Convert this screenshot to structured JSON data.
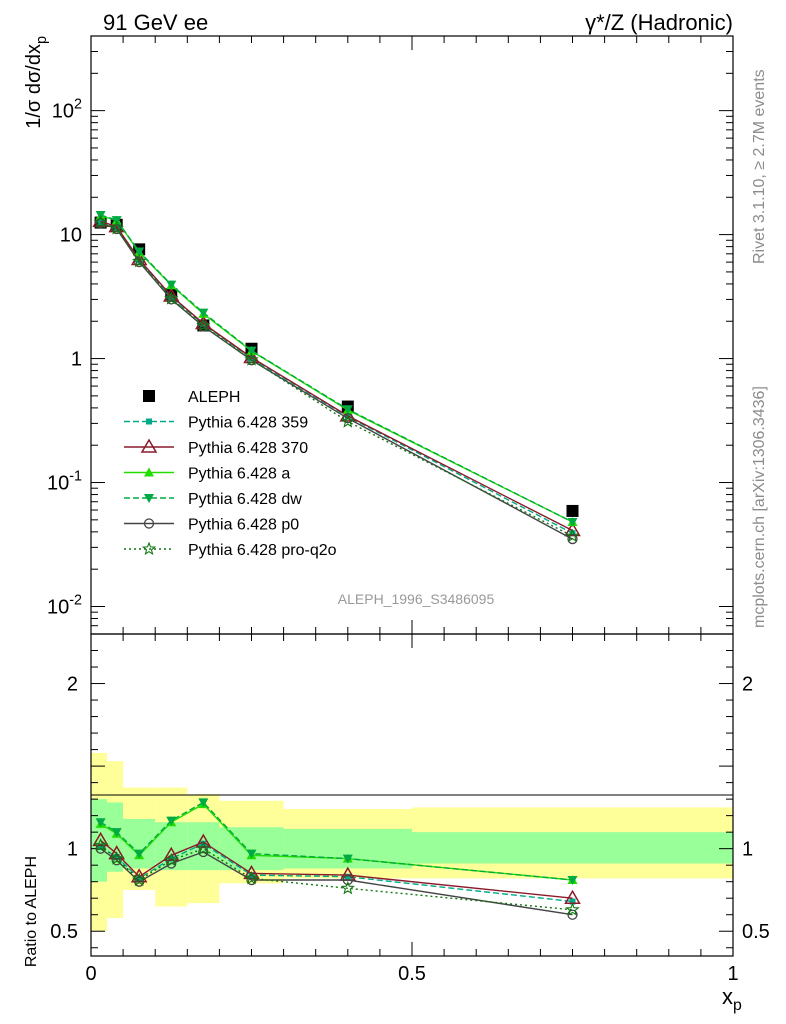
{
  "header": {
    "left": "91 GeV ee",
    "right": "γ*/Z (Hadronic)"
  },
  "side": {
    "top": "Rivet 3.1.10, ≥ 2.7M events",
    "bottom": "mcplots.cern.ch [arXiv:1306.3436]"
  },
  "watermark": "ALEPH_1996_S3486095",
  "chart_data": [
    {
      "type": "line",
      "panel": "main",
      "ylabel": "1/σ dσ/dx_p",
      "yscale": "log",
      "ylim": [
        0.006,
        400
      ],
      "xlim": [
        0,
        1
      ],
      "yticks": [
        "10^-2",
        "10^-1",
        "1",
        "10",
        "10^2"
      ],
      "legend_position": "middle-left",
      "x": [
        0.015,
        0.04,
        0.075,
        0.125,
        0.175,
        0.25,
        0.4,
        0.75
      ],
      "series": [
        {
          "name": "ALEPH",
          "style": "data",
          "color": "#000000",
          "marker": "square",
          "values": [
            12.5,
            12.0,
            7.6,
            3.3,
            1.85,
            1.2,
            0.41,
            0.059
          ]
        },
        {
          "name": "Pythia 6.428 359",
          "color": "#00aa88",
          "dash": "6,3",
          "marker": "smallsquare",
          "values": [
            12.6,
            11.4,
            6.2,
            3.1,
            1.9,
            1.0,
            0.34,
            0.039
          ]
        },
        {
          "name": "Pythia 6.428 370",
          "color": "#8b1a2b",
          "dash": "",
          "marker": "triangle-open",
          "values": [
            12.8,
            11.6,
            6.3,
            3.2,
            1.92,
            1.02,
            0.345,
            0.041
          ]
        },
        {
          "name": "Pythia 6.428 a",
          "color": "#22dd00",
          "dash": "",
          "marker": "triangle",
          "values": [
            14.2,
            13.0,
            7.2,
            3.9,
            2.3,
            1.15,
            0.385,
            0.048
          ]
        },
        {
          "name": "Pythia 6.428 dw",
          "color": "#00aa44",
          "dash": "6,3",
          "marker": "triangle-down",
          "values": [
            14.4,
            13.1,
            7.3,
            3.95,
            2.35,
            1.16,
            0.39,
            0.048
          ]
        },
        {
          "name": "Pythia 6.428 p0",
          "color": "#444444",
          "dash": "",
          "marker": "circle-open",
          "values": [
            12.4,
            11.1,
            6.0,
            3.0,
            1.82,
            0.97,
            0.33,
            0.035
          ]
        },
        {
          "name": "Pythia 6.428 pro-q2o",
          "color": "#117711",
          "dash": "2,3",
          "marker": "star",
          "values": [
            12.6,
            11.2,
            6.1,
            3.05,
            1.85,
            0.98,
            0.31,
            0.037
          ]
        }
      ]
    },
    {
      "type": "line",
      "panel": "ratio",
      "ylabel": "Ratio to ALEPH",
      "xlabel": "x_p",
      "ylim": [
        0.35,
        2.3
      ],
      "yticks": [
        "0.5",
        "1",
        "2"
      ],
      "xlim": [
        0,
        1
      ],
      "xticks": [
        "0",
        "0.5",
        "1"
      ],
      "x": [
        0.015,
        0.04,
        0.075,
        0.125,
        0.175,
        0.25,
        0.4,
        0.75
      ],
      "bands": {
        "edges": [
          0.0,
          0.025,
          0.05,
          0.1,
          0.15,
          0.2,
          0.3,
          0.5,
          1.0
        ],
        "inner": [
          [
            0.8,
            1.3
          ],
          [
            0.86,
            1.28
          ],
          [
            0.88,
            1.18
          ],
          [
            0.87,
            1.16
          ],
          [
            0.87,
            1.16
          ],
          [
            0.87,
            1.13
          ],
          [
            0.88,
            1.12
          ],
          [
            0.91,
            1.1
          ]
        ],
        "outer": [
          [
            0.5,
            1.58
          ],
          [
            0.58,
            1.53
          ],
          [
            0.75,
            1.37
          ],
          [
            0.65,
            1.37
          ],
          [
            0.67,
            1.33
          ],
          [
            0.79,
            1.29
          ],
          [
            0.82,
            1.24
          ],
          [
            0.82,
            1.25
          ]
        ],
        "inner_color": "#99ff99",
        "outer_color": "#ffff99"
      },
      "series": [
        {
          "name": "Pythia 6.428 359",
          "color": "#00aa88",
          "dash": "6,3",
          "marker": "smallsquare",
          "values": [
            1.01,
            0.95,
            0.82,
            0.94,
            1.03,
            0.84,
            0.83,
            0.68
          ]
        },
        {
          "name": "Pythia 6.428 370",
          "color": "#8b1a2b",
          "dash": "",
          "marker": "triangle-open",
          "values": [
            1.05,
            0.97,
            0.83,
            0.96,
            1.04,
            0.85,
            0.84,
            0.7
          ]
        },
        {
          "name": "Pythia 6.428 a",
          "color": "#22dd00",
          "dash": "",
          "marker": "triangle",
          "values": [
            1.15,
            1.09,
            0.96,
            1.16,
            1.27,
            0.96,
            0.94,
            0.81
          ]
        },
        {
          "name": "Pythia 6.428 dw",
          "color": "#00aa44",
          "dash": "6,3",
          "marker": "triangle-down",
          "values": [
            1.16,
            1.1,
            0.97,
            1.17,
            1.28,
            0.97,
            0.94,
            0.81
          ]
        },
        {
          "name": "Pythia 6.428 p0",
          "color": "#444444",
          "dash": "",
          "marker": "circle-open",
          "values": [
            1.0,
            0.93,
            0.8,
            0.91,
            0.98,
            0.81,
            0.81,
            0.6
          ]
        },
        {
          "name": "Pythia 6.428 pro-q2o",
          "color": "#117711",
          "dash": "2,3",
          "marker": "star",
          "values": [
            1.02,
            0.94,
            0.81,
            0.93,
            1.0,
            0.82,
            0.76,
            0.63
          ]
        }
      ]
    }
  ]
}
